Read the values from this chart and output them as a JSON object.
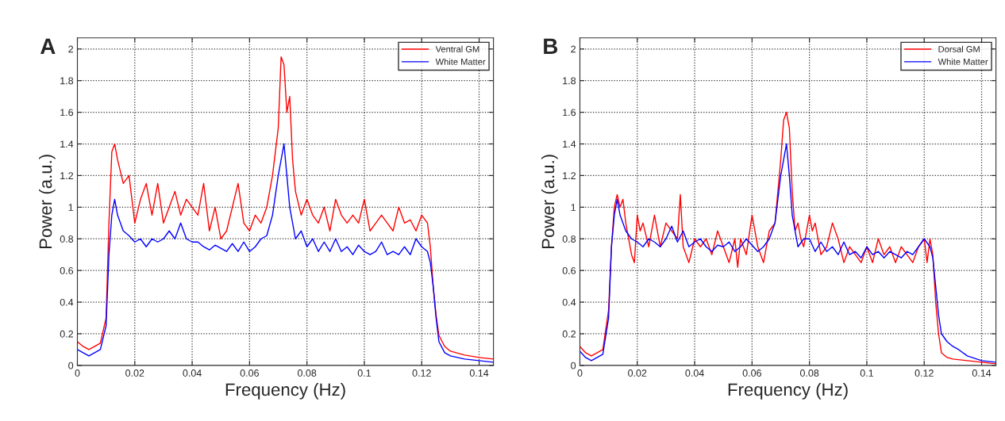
{
  "chart_data": [
    {
      "type": "line",
      "xlabel": "Frequency (Hz)",
      "ylabel": "Power (a.u.)",
      "annotations": [
        "A"
      ],
      "xlim": [
        0,
        0.145
      ],
      "ylim": [
        0,
        2.07
      ],
      "xticks": [
        0,
        0.02,
        0.04,
        0.06,
        0.08,
        0.1,
        0.12,
        0.14
      ],
      "yticks": [
        0,
        0.2,
        0.4,
        0.6,
        0.8,
        1,
        1.2,
        1.4,
        1.6,
        1.8,
        2
      ],
      "grid": true,
      "legend": "top right",
      "series": [
        {
          "name": "Ventral GM",
          "color": "#ff0000",
          "x": [
            0,
            0.002,
            0.004,
            0.006,
            0.008,
            0.01,
            0.011,
            0.012,
            0.013,
            0.014,
            0.016,
            0.018,
            0.02,
            0.022,
            0.024,
            0.026,
            0.028,
            0.03,
            0.032,
            0.034,
            0.036,
            0.038,
            0.04,
            0.042,
            0.044,
            0.046,
            0.048,
            0.05,
            0.052,
            0.054,
            0.056,
            0.058,
            0.06,
            0.062,
            0.064,
            0.066,
            0.068,
            0.07,
            0.071,
            0.072,
            0.073,
            0.074,
            0.075,
            0.076,
            0.078,
            0.08,
            0.082,
            0.084,
            0.086,
            0.088,
            0.09,
            0.092,
            0.094,
            0.096,
            0.098,
            0.1,
            0.102,
            0.104,
            0.106,
            0.108,
            0.11,
            0.112,
            0.114,
            0.116,
            0.118,
            0.12,
            0.122,
            0.123,
            0.124,
            0.125,
            0.126,
            0.128,
            0.13,
            0.135,
            0.14,
            0.145
          ],
          "values": [
            0.15,
            0.12,
            0.1,
            0.12,
            0.14,
            0.3,
            0.9,
            1.35,
            1.4,
            1.3,
            1.15,
            1.2,
            0.9,
            1.05,
            1.15,
            0.95,
            1.15,
            0.9,
            1.0,
            1.1,
            0.95,
            1.05,
            1.0,
            0.95,
            1.15,
            0.85,
            1.0,
            0.8,
            0.85,
            1.0,
            1.15,
            0.9,
            0.85,
            0.95,
            0.9,
            1.0,
            1.2,
            1.5,
            1.95,
            1.9,
            1.6,
            1.7,
            1.3,
            1.1,
            0.95,
            1.05,
            0.95,
            0.9,
            1.0,
            0.85,
            1.05,
            0.95,
            0.9,
            0.95,
            0.9,
            1.05,
            0.85,
            0.9,
            0.95,
            0.9,
            0.85,
            1.0,
            0.9,
            0.92,
            0.85,
            0.95,
            0.9,
            0.75,
            0.5,
            0.32,
            0.19,
            0.12,
            0.09,
            0.065,
            0.05,
            0.04
          ]
        },
        {
          "name": "White Matter",
          "color": "#0000ff",
          "x": [
            0,
            0.002,
            0.004,
            0.006,
            0.008,
            0.01,
            0.011,
            0.012,
            0.013,
            0.014,
            0.016,
            0.018,
            0.02,
            0.022,
            0.024,
            0.026,
            0.028,
            0.03,
            0.032,
            0.034,
            0.036,
            0.038,
            0.04,
            0.042,
            0.044,
            0.046,
            0.048,
            0.05,
            0.052,
            0.054,
            0.056,
            0.058,
            0.06,
            0.062,
            0.064,
            0.066,
            0.068,
            0.07,
            0.072,
            0.073,
            0.074,
            0.076,
            0.078,
            0.08,
            0.082,
            0.084,
            0.086,
            0.088,
            0.09,
            0.092,
            0.094,
            0.096,
            0.098,
            0.1,
            0.102,
            0.104,
            0.106,
            0.108,
            0.11,
            0.112,
            0.114,
            0.116,
            0.118,
            0.12,
            0.122,
            0.123,
            0.124,
            0.125,
            0.126,
            0.128,
            0.13,
            0.135,
            0.14,
            0.145
          ],
          "values": [
            0.1,
            0.08,
            0.06,
            0.08,
            0.1,
            0.25,
            0.7,
            0.95,
            1.05,
            0.95,
            0.85,
            0.82,
            0.78,
            0.8,
            0.75,
            0.8,
            0.78,
            0.8,
            0.85,
            0.8,
            0.9,
            0.8,
            0.78,
            0.78,
            0.75,
            0.73,
            0.76,
            0.74,
            0.72,
            0.77,
            0.72,
            0.78,
            0.72,
            0.75,
            0.8,
            0.82,
            0.95,
            1.2,
            1.4,
            1.2,
            1.0,
            0.8,
            0.85,
            0.75,
            0.8,
            0.72,
            0.78,
            0.72,
            0.8,
            0.72,
            0.75,
            0.7,
            0.76,
            0.72,
            0.7,
            0.72,
            0.78,
            0.7,
            0.72,
            0.7,
            0.75,
            0.7,
            0.8,
            0.75,
            0.72,
            0.65,
            0.5,
            0.3,
            0.15,
            0.08,
            0.06,
            0.04,
            0.03,
            0.02
          ]
        }
      ]
    },
    {
      "type": "line",
      "xlabel": "Frequency (Hz)",
      "ylabel": "Power (a.u.)",
      "annotations": [
        "B"
      ],
      "xlim": [
        0,
        0.145
      ],
      "ylim": [
        0,
        2.07
      ],
      "xticks": [
        0,
        0.02,
        0.04,
        0.06,
        0.08,
        0.1,
        0.12,
        0.14
      ],
      "yticks": [
        0,
        0.2,
        0.4,
        0.6,
        0.8,
        1,
        1.2,
        1.4,
        1.6,
        1.8,
        2
      ],
      "grid": true,
      "legend": "top right",
      "series": [
        {
          "name": "Dorsal GM",
          "color": "#ff0000",
          "x": [
            0,
            0.002,
            0.004,
            0.006,
            0.008,
            0.01,
            0.011,
            0.012,
            0.013,
            0.014,
            0.015,
            0.016,
            0.018,
            0.019,
            0.02,
            0.021,
            0.022,
            0.024,
            0.026,
            0.028,
            0.03,
            0.032,
            0.034,
            0.035,
            0.036,
            0.038,
            0.04,
            0.042,
            0.044,
            0.046,
            0.048,
            0.05,
            0.052,
            0.054,
            0.055,
            0.056,
            0.058,
            0.06,
            0.062,
            0.064,
            0.066,
            0.068,
            0.07,
            0.071,
            0.072,
            0.073,
            0.074,
            0.075,
            0.076,
            0.077,
            0.078,
            0.08,
            0.081,
            0.082,
            0.084,
            0.086,
            0.088,
            0.09,
            0.092,
            0.094,
            0.096,
            0.098,
            0.1,
            0.102,
            0.104,
            0.106,
            0.108,
            0.11,
            0.112,
            0.114,
            0.116,
            0.118,
            0.12,
            0.121,
            0.122,
            0.123,
            0.124,
            0.125,
            0.126,
            0.128,
            0.13,
            0.135,
            0.14,
            0.145
          ],
          "values": [
            0.12,
            0.08,
            0.06,
            0.08,
            0.1,
            0.35,
            0.75,
            1.0,
            1.08,
            1.0,
            1.05,
            0.9,
            0.7,
            0.65,
            0.95,
            0.85,
            0.9,
            0.75,
            0.95,
            0.75,
            0.9,
            0.85,
            0.8,
            1.08,
            0.75,
            0.65,
            0.8,
            0.75,
            0.8,
            0.7,
            0.85,
            0.75,
            0.65,
            0.8,
            0.62,
            0.8,
            0.7,
            0.95,
            0.75,
            0.65,
            0.85,
            0.9,
            1.3,
            1.55,
            1.6,
            1.5,
            1.1,
            0.85,
            0.9,
            0.8,
            0.75,
            0.95,
            0.85,
            0.9,
            0.7,
            0.75,
            0.9,
            0.8,
            0.65,
            0.75,
            0.7,
            0.65,
            0.75,
            0.65,
            0.8,
            0.7,
            0.75,
            0.65,
            0.75,
            0.7,
            0.65,
            0.75,
            0.8,
            0.65,
            0.8,
            0.7,
            0.4,
            0.2,
            0.08,
            0.05,
            0.04,
            0.03,
            0.02,
            0.01
          ]
        },
        {
          "name": "White Matter",
          "color": "#0000ff",
          "x": [
            0,
            0.002,
            0.004,
            0.006,
            0.008,
            0.01,
            0.011,
            0.012,
            0.013,
            0.014,
            0.016,
            0.018,
            0.02,
            0.022,
            0.024,
            0.026,
            0.028,
            0.03,
            0.032,
            0.034,
            0.036,
            0.038,
            0.04,
            0.042,
            0.044,
            0.046,
            0.048,
            0.05,
            0.052,
            0.054,
            0.056,
            0.058,
            0.06,
            0.062,
            0.064,
            0.066,
            0.068,
            0.07,
            0.072,
            0.073,
            0.074,
            0.076,
            0.078,
            0.08,
            0.082,
            0.084,
            0.086,
            0.088,
            0.09,
            0.092,
            0.094,
            0.096,
            0.098,
            0.1,
            0.102,
            0.104,
            0.106,
            0.108,
            0.11,
            0.112,
            0.114,
            0.116,
            0.118,
            0.12,
            0.122,
            0.123,
            0.124,
            0.125,
            0.126,
            0.128,
            0.13,
            0.132,
            0.135,
            0.14,
            0.145
          ],
          "values": [
            0.09,
            0.05,
            0.03,
            0.05,
            0.07,
            0.3,
            0.75,
            0.95,
            1.05,
            0.95,
            0.85,
            0.8,
            0.78,
            0.75,
            0.8,
            0.78,
            0.75,
            0.8,
            0.88,
            0.78,
            0.85,
            0.75,
            0.78,
            0.8,
            0.75,
            0.72,
            0.76,
            0.75,
            0.78,
            0.72,
            0.75,
            0.8,
            0.76,
            0.72,
            0.75,
            0.8,
            0.9,
            1.2,
            1.4,
            1.2,
            0.95,
            0.75,
            0.8,
            0.8,
            0.72,
            0.78,
            0.72,
            0.75,
            0.7,
            0.78,
            0.7,
            0.72,
            0.68,
            0.75,
            0.7,
            0.72,
            0.68,
            0.72,
            0.7,
            0.68,
            0.72,
            0.7,
            0.75,
            0.8,
            0.75,
            0.68,
            0.5,
            0.32,
            0.2,
            0.15,
            0.12,
            0.1,
            0.06,
            0.03,
            0.02
          ]
        }
      ]
    }
  ]
}
